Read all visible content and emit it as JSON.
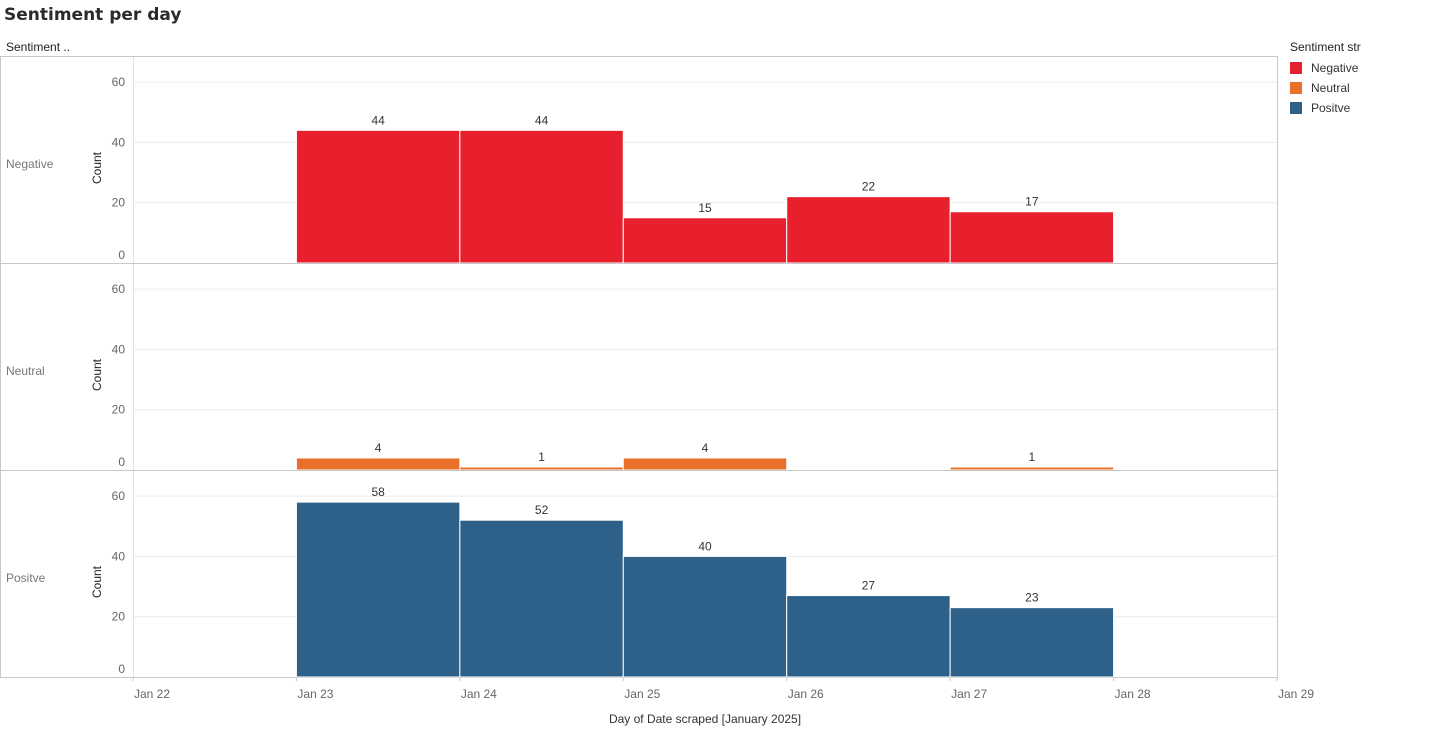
{
  "title": "Sentiment per day",
  "facet_header": "Sentiment ..",
  "legend": {
    "title": "Sentiment str",
    "items": [
      {
        "label": "Negative",
        "color": "#e8202e"
      },
      {
        "label": "Neutral",
        "color": "#e8702a"
      },
      {
        "label": "Positve",
        "color": "#2e6189"
      }
    ]
  },
  "chart_data": {
    "type": "bar",
    "title": "Sentiment per day",
    "xlabel": "Day of Date scraped [January 2025]",
    "ylabel": "Count",
    "ylim": [
      0,
      66
    ],
    "yticks": [
      0,
      20,
      40,
      60
    ],
    "xticks": [
      "Jan 22",
      "Jan 23",
      "Jan 24",
      "Jan 25",
      "Jan 26",
      "Jan 27",
      "Jan 28",
      "Jan 29"
    ],
    "grid": true,
    "legend_position": "right",
    "categories": [
      "Jan 23",
      "Jan 24",
      "Jan 25",
      "Jan 26",
      "Jan 27"
    ],
    "series": [
      {
        "name": "Negative",
        "color": "#e8202e",
        "values": [
          44,
          44,
          15,
          22,
          17
        ]
      },
      {
        "name": "Neutral",
        "color": "#e8702a",
        "values": [
          4,
          1,
          4,
          null,
          1
        ]
      },
      {
        "name": "Positve",
        "color": "#2e6189",
        "values": [
          58,
          52,
          40,
          27,
          23
        ]
      }
    ]
  }
}
